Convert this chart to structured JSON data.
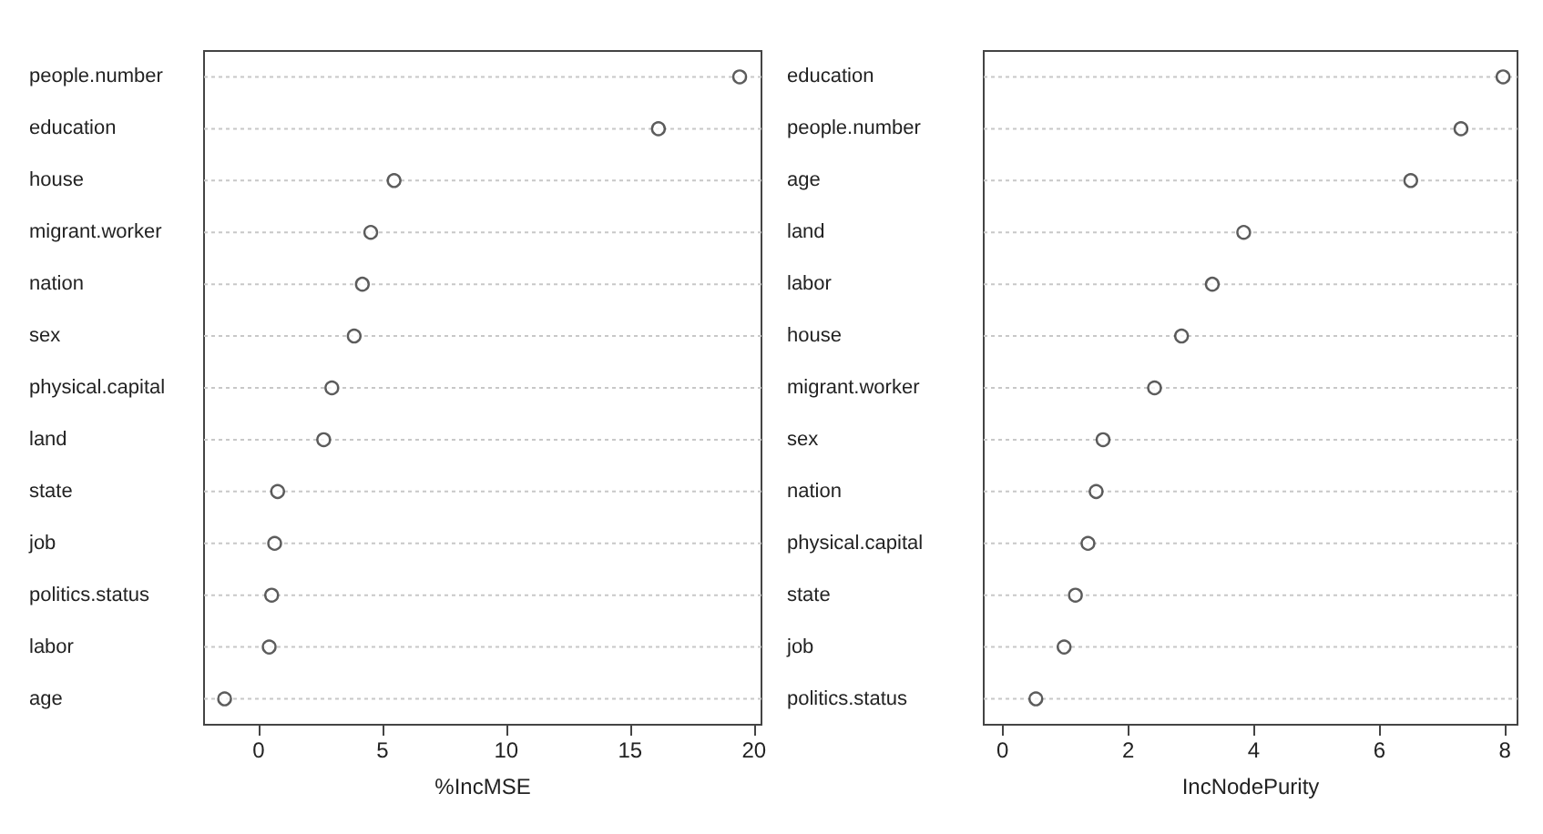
{
  "chart_data": [
    {
      "type": "scatter",
      "orientation": "horizontal",
      "xlabel": "%IncMSE",
      "categories": [
        "people.number",
        "education",
        "house",
        "migrant.worker",
        "nation",
        "sex",
        "physical.capital",
        "land",
        "state",
        "job",
        "politics.status",
        "labor",
        "age"
      ],
      "series": [
        {
          "color": "#333333",
          "values": [
            19.42,
            16.14,
            5.47,
            4.53,
            4.19,
            3.86,
            2.96,
            2.63,
            0.77,
            0.65,
            0.53,
            0.43,
            -1.37
          ]
        }
      ],
      "xlim": [
        -2.2,
        20.3
      ],
      "xticks": [
        0,
        5,
        10,
        15,
        20
      ],
      "grid": "y",
      "marker": "circle"
    },
    {
      "type": "scatter",
      "orientation": "horizontal",
      "xlabel": "IncNodePurity",
      "categories": [
        "education",
        "people.number",
        "age",
        "land",
        "labor",
        "house",
        "migrant.worker",
        "sex",
        "nation",
        "physical.capital",
        "state",
        "job",
        "politics.status"
      ],
      "series": [
        {
          "color": "#333333",
          "values": [
            7.97,
            7.3,
            6.5,
            3.84,
            3.34,
            2.85,
            2.42,
            1.6,
            1.49,
            1.36,
            1.16,
            0.98,
            0.53
          ]
        }
      ],
      "xlim": [
        -0.3,
        8.2
      ],
      "xticks": [
        0,
        2,
        4,
        6,
        8
      ],
      "grid": "y",
      "marker": "circle"
    }
  ]
}
